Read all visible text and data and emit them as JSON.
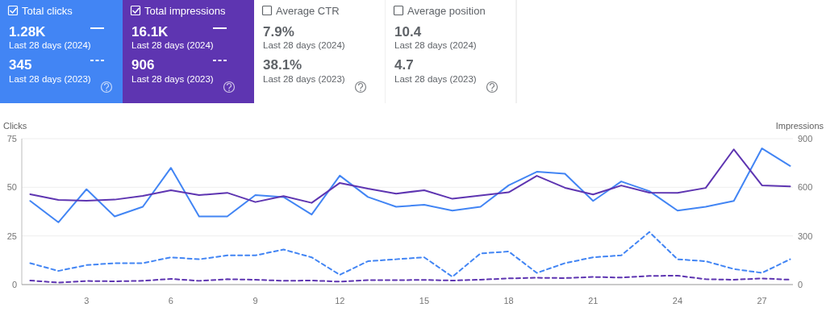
{
  "chart_data": [
    {
      "type": "other",
      "annotations": [
        "Total clicks",
        "1.28K",
        "Last 28 days (2024)",
        "345",
        "Last 28 days (2023)",
        "Total impressions",
        "16.1K",
        "Last 28 days (2024)",
        "906",
        "Last 28 days (2023)",
        "Average CTR",
        "7.9%",
        "Last 28 days (2024)",
        "38.1%",
        "Last 28 days (2023)",
        "Average position",
        "10.4",
        "Last 28 days (2024)",
        "4.7",
        "Last 28 days (2023)"
      ],
      "colors": [
        "#4285f4",
        "#5e35b1",
        "#ffffff",
        "#ffffff"
      ]
    },
    {
      "type": "line",
      "ylabel": "Clicks",
      "y2label": "Impressions",
      "x": [
        1,
        2,
        3,
        4,
        5,
        6,
        7,
        8,
        9,
        10,
        11,
        12,
        13,
        14,
        15,
        16,
        17,
        18,
        19,
        20,
        21,
        22,
        23,
        24,
        25,
        26,
        27,
        28
      ],
      "xlim": [
        0.7,
        28.1
      ],
      "xticks": [
        3,
        6,
        9,
        12,
        15,
        18,
        21,
        24,
        27
      ],
      "ylim": [
        0,
        75
      ],
      "yticks": [
        0,
        25,
        50,
        75
      ],
      "y2lim": [
        0,
        900
      ],
      "y2ticks": [
        0,
        300,
        600,
        900
      ],
      "grid": "y",
      "series": [
        {
          "color": "#4285f4",
          "line_style": "solid",
          "values": [
            43,
            32,
            49,
            35,
            40,
            60,
            35,
            35,
            46,
            45,
            36,
            56,
            45,
            40,
            41,
            38,
            40,
            51,
            58,
            57,
            43,
            53,
            48,
            38,
            40,
            43,
            70,
            61
          ]
        },
        {
          "color": "#5e35b1",
          "line_style": "solid",
          "axis": "y2",
          "values": [
            557,
            522,
            517,
            524,
            547,
            582,
            552,
            566,
            509,
            546,
            504,
            627,
            592,
            561,
            582,
            529,
            549,
            569,
            671,
            597,
            556,
            611,
            567,
            566,
            596,
            834,
            612,
            606
          ]
        },
        {
          "color": "#4285f4",
          "line_style": "dashed",
          "values": [
            11,
            7,
            10,
            11,
            11,
            14,
            13,
            15,
            15,
            18,
            14,
            5,
            12,
            13,
            14,
            4,
            16,
            17,
            6,
            11,
            14,
            15,
            27,
            13,
            12,
            8,
            6,
            13
          ]
        },
        {
          "color": "#5e35b1",
          "line_style": "dashed",
          "axis": "y2",
          "values": [
            25,
            12,
            22,
            20,
            23,
            35,
            23,
            33,
            30,
            23,
            25,
            18,
            27,
            27,
            29,
            25,
            30,
            38,
            42,
            40,
            47,
            43,
            53,
            55,
            33,
            30,
            38,
            30
          ]
        }
      ]
    }
  ]
}
